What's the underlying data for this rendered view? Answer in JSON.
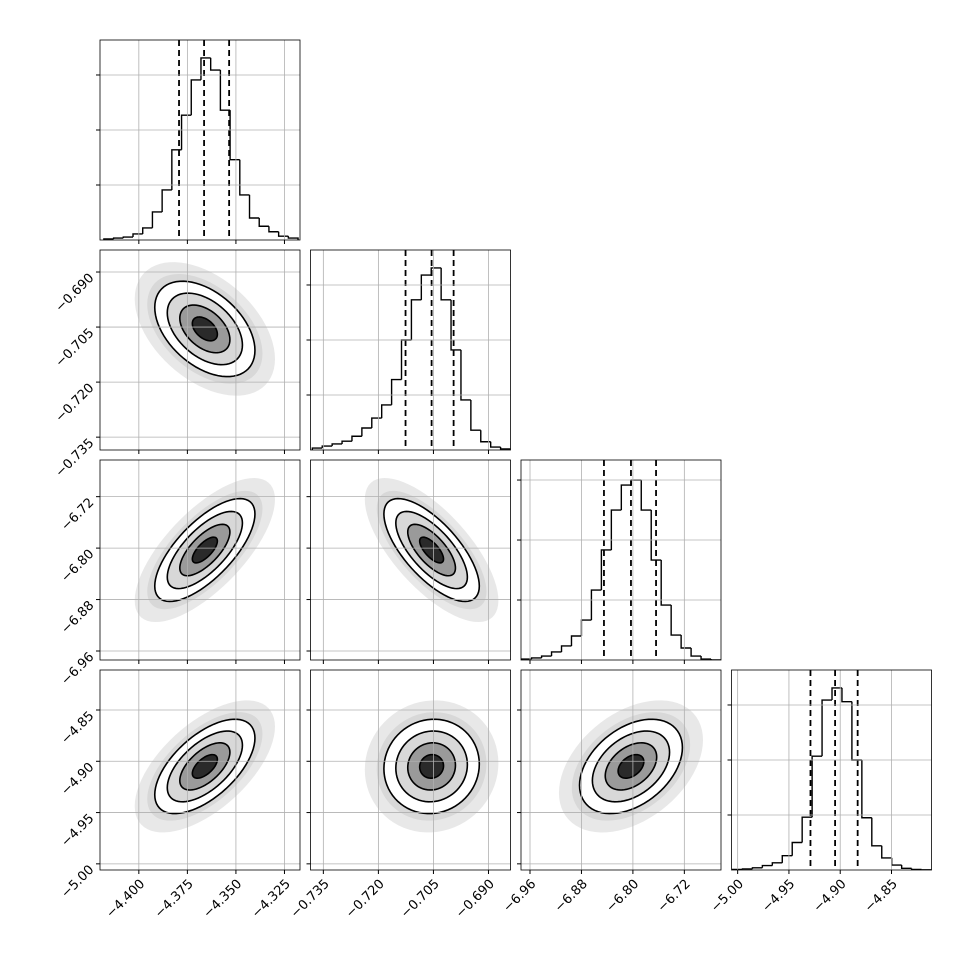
{
  "chart_data": [
    {
      "type": "histogram",
      "xlim": [
        -4.42,
        -4.317
      ],
      "xticks": [
        {
          "value": -4.4,
          "label": "−4.400"
        },
        {
          "value": -4.375,
          "label": "−4.375"
        },
        {
          "value": -4.35,
          "label": "−4.350"
        },
        {
          "value": -4.325,
          "label": "−4.325"
        }
      ],
      "bins": [
        -4.418,
        -4.413,
        -4.408,
        -4.403,
        -4.398,
        -4.393,
        -4.388,
        -4.383,
        -4.378,
        -4.373,
        -4.368,
        -4.363,
        -4.358,
        -4.353,
        -4.348,
        -4.343,
        -4.338,
        -4.333,
        -4.328,
        -4.323,
        -4.318
      ],
      "counts": [
        9,
        18,
        27,
        55,
        110,
        255,
        455,
        820,
        1135,
        1455,
        1655,
        1545,
        1180,
        730,
        410,
        200,
        125,
        75,
        35,
        18
      ],
      "ylim": [
        0,
        1818
      ],
      "yticks": [
        500,
        1000,
        1500
      ],
      "quantiles": [
        -4.3793,
        -4.3664,
        -4.3535
      ],
      "grid": true,
      "color": "#000000"
    },
    {
      "type": "contour",
      "xlim": [
        -4.42,
        -4.317
      ],
      "ylim": [
        -0.7385,
        -0.684
      ],
      "xticks": [
        {
          "value": -4.4,
          "label": "−4.400"
        },
        {
          "value": -4.375,
          "label": "−4.375"
        },
        {
          "value": -4.35,
          "label": "−4.350"
        },
        {
          "value": -4.325,
          "label": "−4.325"
        }
      ],
      "yticks": [
        {
          "value": -0.735,
          "label": "−0.735"
        },
        {
          "value": -0.72,
          "label": "−0.720"
        },
        {
          "value": -0.705,
          "label": "−0.705"
        },
        {
          "value": -0.69,
          "label": "−0.690"
        }
      ],
      "mean": [
        -4.366,
        -0.7055
      ],
      "std": [
        0.0129,
        0.0065
      ],
      "corr": -0.45,
      "levels": [
        0.5,
        1,
        1.5,
        2
      ],
      "grid": true
    },
    {
      "type": "histogram",
      "xlim": [
        -0.7385,
        -0.684
      ],
      "xticks": [
        {
          "value": -0.735,
          "label": "−0.735"
        },
        {
          "value": -0.72,
          "label": "−0.720"
        },
        {
          "value": -0.705,
          "label": "−0.705"
        },
        {
          "value": -0.69,
          "label": "−0.690"
        }
      ],
      "bins": [
        -0.738,
        -0.7353,
        -0.7326,
        -0.7299,
        -0.7272,
        -0.7245,
        -0.7218,
        -0.7191,
        -0.7164,
        -0.7137,
        -0.711,
        -0.7083,
        -0.7056,
        -0.7029,
        -0.7002,
        -0.6975,
        -0.6948,
        -0.6921,
        -0.6894,
        -0.6867,
        -0.684
      ],
      "counts": [
        18,
        36,
        55,
        80,
        125,
        200,
        290,
        410,
        640,
        1000,
        1365,
        1590,
        1655,
        1365,
        910,
        455,
        180,
        75,
        27,
        9
      ],
      "ylim": [
        0,
        1818
      ],
      "yticks": [
        500,
        1000,
        1500
      ],
      "quantiles": [
        -0.7126,
        -0.7055,
        -0.6995
      ],
      "grid": true,
      "color": "#000000"
    },
    {
      "type": "contour",
      "xlim": [
        -4.42,
        -4.317
      ],
      "ylim": [
        -6.974,
        -6.663
      ],
      "xticks": [
        {
          "value": -4.4,
          "label": "−4.400"
        },
        {
          "value": -4.375,
          "label": "−4.375"
        },
        {
          "value": -4.35,
          "label": "−4.350"
        },
        {
          "value": -4.325,
          "label": "−4.325"
        }
      ],
      "yticks": [
        {
          "value": -6.96,
          "label": "−6.96"
        },
        {
          "value": -6.88,
          "label": "−6.88"
        },
        {
          "value": -6.8,
          "label": "−6.80"
        },
        {
          "value": -6.72,
          "label": "−6.72"
        }
      ],
      "mean": [
        -4.366,
        -6.803
      ],
      "std": [
        0.0129,
        0.04
      ],
      "corr": 0.7,
      "levels": [
        0.5,
        1,
        1.5,
        2
      ],
      "grid": true
    },
    {
      "type": "contour",
      "xlim": [
        -0.7385,
        -0.684
      ],
      "ylim": [
        -6.974,
        -6.663
      ],
      "xticks": [
        {
          "value": -0.735,
          "label": "−0.735"
        },
        {
          "value": -0.72,
          "label": "−0.720"
        },
        {
          "value": -0.705,
          "label": "−0.705"
        },
        {
          "value": -0.69,
          "label": "−0.690"
        }
      ],
      "yticks": [
        {
          "value": -6.96,
          "label": "−6.96"
        },
        {
          "value": -6.88,
          "label": "−6.88"
        },
        {
          "value": -6.8,
          "label": "−6.80"
        },
        {
          "value": -6.72,
          "label": "−6.72"
        }
      ],
      "mean": [
        -0.7055,
        -6.803
      ],
      "std": [
        0.0065,
        0.04
      ],
      "corr": -0.7,
      "levels": [
        0.5,
        1,
        1.5,
        2
      ],
      "grid": true
    },
    {
      "type": "histogram",
      "xlim": [
        -6.974,
        -6.663
      ],
      "xticks": [
        {
          "value": -6.96,
          "label": "−6.96"
        },
        {
          "value": -6.88,
          "label": "−6.88"
        },
        {
          "value": -6.8,
          "label": "−6.80"
        },
        {
          "value": -6.72,
          "label": "−6.72"
        }
      ],
      "bins": [
        -6.973,
        -6.9575,
        -6.942,
        -6.9265,
        -6.911,
        -6.8955,
        -6.88,
        -6.8645,
        -6.849,
        -6.8335,
        -6.818,
        -6.8025,
        -6.787,
        -6.7715,
        -6.756,
        -6.7405,
        -6.725,
        -6.7095,
        -6.694,
        -6.6785,
        -6.663
      ],
      "counts": [
        8,
        17,
        33,
        67,
        117,
        200,
        333,
        583,
        917,
        1250,
        1458,
        1500,
        1250,
        833,
        458,
        208,
        100,
        33,
        8,
        0
      ],
      "ylim": [
        0,
        1667
      ],
      "yticks": [
        500,
        1000,
        1500
      ],
      "quantiles": [
        -6.845,
        -6.803,
        -6.764
      ],
      "grid": true,
      "color": "#000000"
    },
    {
      "type": "contour",
      "xlim": [
        -4.42,
        -4.317
      ],
      "ylim": [
        -5.006,
        -4.811
      ],
      "xticks": [
        {
          "value": -4.4,
          "label": "−4.400"
        },
        {
          "value": -4.375,
          "label": "−4.375"
        },
        {
          "value": -4.35,
          "label": "−4.350"
        },
        {
          "value": -4.325,
          "label": "−4.325"
        }
      ],
      "yticks": [
        {
          "value": -5,
          "label": "−5.00"
        },
        {
          "value": -4.95,
          "label": "−4.95"
        },
        {
          "value": -4.9,
          "label": "−4.90"
        },
        {
          "value": -4.85,
          "label": "−4.85"
        }
      ],
      "mean": [
        -4.366,
        -4.905
      ],
      "std": [
        0.0129,
        0.023
      ],
      "corr": 0.6,
      "levels": [
        0.5,
        1,
        1.5,
        2
      ],
      "grid": true
    },
    {
      "type": "contour",
      "xlim": [
        -0.7385,
        -0.684
      ],
      "ylim": [
        -5.006,
        -4.811
      ],
      "xticks": [
        {
          "value": -0.735,
          "label": "−0.735"
        },
        {
          "value": -0.72,
          "label": "−0.720"
        },
        {
          "value": -0.705,
          "label": "−0.705"
        },
        {
          "value": -0.69,
          "label": "−0.690"
        }
      ],
      "yticks": [
        {
          "value": -5,
          "label": "−5.00"
        },
        {
          "value": -4.95,
          "label": "−4.95"
        },
        {
          "value": -4.9,
          "label": "−4.90"
        },
        {
          "value": -4.85,
          "label": "−4.85"
        }
      ],
      "mean": [
        -0.7055,
        -4.905
      ],
      "std": [
        0.0065,
        0.023
      ],
      "corr": 0.05,
      "levels": [
        0.5,
        1,
        1.5,
        2
      ],
      "grid": true
    },
    {
      "type": "contour",
      "xlim": [
        -6.974,
        -6.663
      ],
      "ylim": [
        -5.006,
        -4.811
      ],
      "xticks": [
        {
          "value": -6.96,
          "label": "−6.96"
        },
        {
          "value": -6.88,
          "label": "−6.88"
        },
        {
          "value": -6.8,
          "label": "−6.80"
        },
        {
          "value": -6.72,
          "label": "−6.72"
        }
      ],
      "yticks": [
        {
          "value": -5,
          "label": "−5.00"
        },
        {
          "value": -4.95,
          "label": "−4.95"
        },
        {
          "value": -4.9,
          "label": "−4.90"
        },
        {
          "value": -4.85,
          "label": "−4.85"
        }
      ],
      "mean": [
        -6.803,
        -4.905
      ],
      "std": [
        0.04,
        0.023
      ],
      "corr": 0.4,
      "levels": [
        0.5,
        1,
        1.5,
        2
      ],
      "grid": true
    },
    {
      "type": "histogram",
      "xlim": [
        -5.006,
        -4.811
      ],
      "xticks": [
        {
          "value": -5,
          "label": "−5.00"
        },
        {
          "value": -4.95,
          "label": "−4.95"
        },
        {
          "value": -4.9,
          "label": "−4.90"
        },
        {
          "value": -4.85,
          "label": "−4.85"
        }
      ],
      "bins": [
        -5.005,
        -4.9953,
        -4.9856,
        -4.9759,
        -4.9662,
        -4.9565,
        -4.9468,
        -4.9371,
        -4.9274,
        -4.9177,
        -4.908,
        -4.8983,
        -4.8886,
        -4.8789,
        -4.8692,
        -4.8595,
        -4.8498,
        -4.8401,
        -4.8304,
        -4.8207,
        -4.811
      ],
      "counts": [
        5,
        10,
        20,
        40,
        65,
        130,
        250,
        480,
        1035,
        1545,
        1655,
        1530,
        1000,
        475,
        220,
        110,
        45,
        15,
        5,
        2
      ],
      "ylim": [
        0,
        1818
      ],
      "yticks": [
        500,
        1000,
        1500
      ],
      "quantiles": [
        -4.929,
        -4.905,
        -4.883
      ],
      "grid": true,
      "color": "#000000"
    }
  ]
}
